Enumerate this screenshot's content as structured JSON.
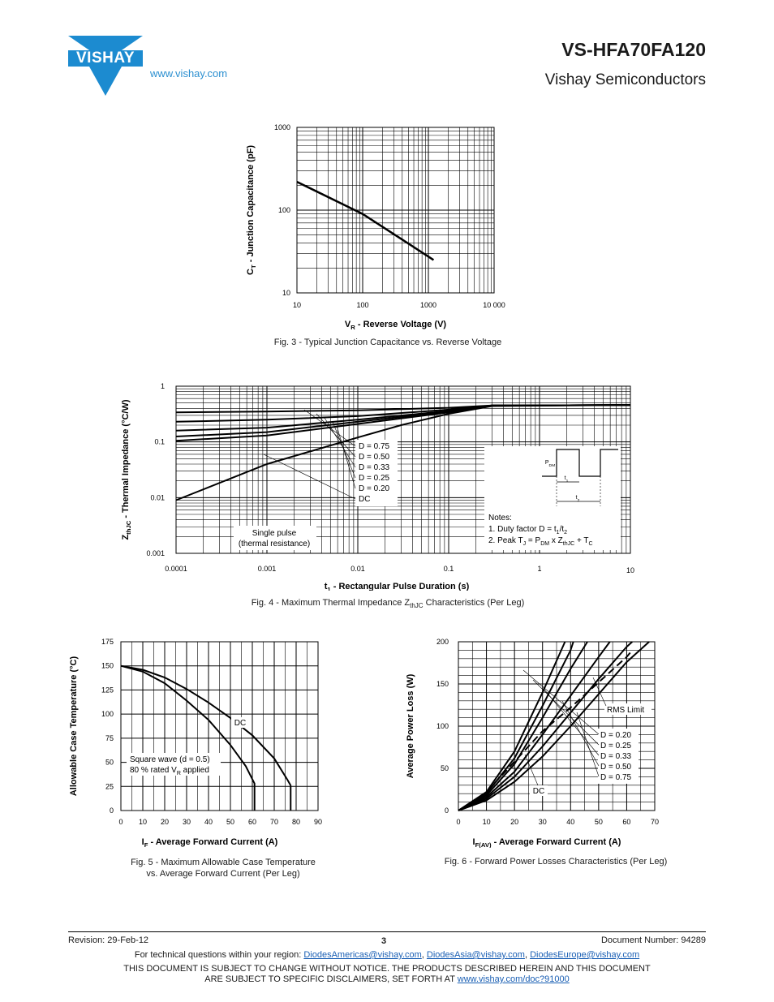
{
  "header": {
    "logo_text": "VISHAY",
    "url": "www.vishay.com",
    "part_number": "VS-HFA70FA120",
    "brand": "Vishay Semiconductors"
  },
  "fig3": {
    "caption": "Fig. 3 - Typical Junction Capacitance vs. Reverse Voltage",
    "ylabel_main": "C",
    "ylabel_sub": "T",
    "ylabel_rest": " - Junction Capacitance (pF)",
    "xlabel_main": "V",
    "xlabel_sub": "R",
    "xlabel_rest": " - Reverse Voltage (V)",
    "xticks": [
      "10",
      "100",
      "1000",
      "10 000"
    ],
    "yticks": [
      "10",
      "100",
      "1000"
    ]
  },
  "fig4": {
    "caption_pre": "Fig. 4 - Maximum Thermal Impedance Z",
    "caption_sub": "thJC",
    "caption_post": " Characteristics (Per Leg)",
    "ylabel_main": "Z",
    "ylabel_sub": "thJC",
    "ylabel_rest": " - Thermal Impedance (°C/W)",
    "xlabel_main": "t",
    "xlabel_sub": "1",
    "xlabel_rest": " - Rectangular Pulse Duration (s)",
    "xticks": [
      "0.0001",
      "0.001",
      "0.01",
      "0.1",
      "1",
      "10"
    ],
    "yticks": [
      "0.001",
      "0.01",
      "0.1",
      "1"
    ],
    "legend": [
      "D = 0.75",
      "D = 0.50",
      "D = 0.33",
      "D = 0.25",
      "D = 0.20",
      "DC"
    ],
    "single_pulse_1": "Single pulse",
    "single_pulse_2": "(thermal resistance)",
    "notes_title": "Notes:",
    "note1_pre": "1. Duty factor D = t",
    "note1_s1": "1",
    "note1_mid": "/t",
    "note1_s2": "2",
    "note2_a": "2. Peak T",
    "note2_as": "J",
    "note2_b": " = P",
    "note2_bs": "DM",
    "note2_c": " x Z",
    "note2_cs": "thJC",
    "note2_d": " + T",
    "note2_ds": "C",
    "inset_pdm": "P",
    "inset_pdm_sub": "DM",
    "inset_t1": "t",
    "inset_t1_sub": "1",
    "inset_t2": "t",
    "inset_t2_sub": "2"
  },
  "fig5": {
    "caption_line1": "Fig. 5 - Maximum Allowable Case Temperature",
    "caption_line2": "vs. Average Forward Current (Per Leg)",
    "ylabel": "Allowable Case Temperature (°C)",
    "xlabel_main": "I",
    "xlabel_sub": "F",
    "xlabel_rest": " - Average Forward Current (A)",
    "xticks": [
      "0",
      "10",
      "20",
      "30",
      "40",
      "50",
      "60",
      "70",
      "80",
      "90"
    ],
    "yticks": [
      "0",
      "25",
      "50",
      "75",
      "100",
      "125",
      "150",
      "175"
    ],
    "dc_label": "DC",
    "square_label_1": "Square wave (d = 0.5)",
    "square_label_2a": "80 % rated V",
    "square_label_2s": "R",
    "square_label_2b": " applied"
  },
  "fig6": {
    "caption": "Fig. 6 - Forward Power Losses Characteristics (Per Leg)",
    "ylabel": "Average Power Loss (W)",
    "xlabel_main": "I",
    "xlabel_sub": "F(AV)",
    "xlabel_rest": " - Average Forward Current (A)",
    "xticks": [
      "0",
      "10",
      "20",
      "30",
      "40",
      "50",
      "60",
      "70"
    ],
    "yticks": [
      "0",
      "50",
      "100",
      "150",
      "200"
    ],
    "rms_label": "RMS Limit",
    "legend": [
      "D = 0.20",
      "D = 0.25",
      "D = 0.33",
      "D = 0.50",
      "D = 0.75"
    ],
    "dc_label": "DC"
  },
  "chart_data": [
    {
      "type": "line",
      "title": "Fig. 3 - Typical Junction Capacitance vs. Reverse Voltage",
      "xlabel": "VR - Reverse Voltage (V)",
      "ylabel": "CT - Junction Capacitance (pF)",
      "xscale": "log",
      "yscale": "log",
      "xlim": [
        10,
        10000
      ],
      "ylim": [
        10,
        1000
      ],
      "grid": true,
      "series": [
        {
          "x": [
            10,
            100,
            1200
          ],
          "y": [
            220,
            90,
            25
          ]
        }
      ]
    },
    {
      "type": "line",
      "title": "Fig. 4 - Maximum Thermal Impedance ZthJC Characteristics (Per Leg)",
      "xlabel": "t1 - Rectangular Pulse Duration (s)",
      "ylabel": "ZthJC - Thermal Impedance (°C/W)",
      "xscale": "log",
      "yscale": "log",
      "xlim": [
        0.0001,
        10
      ],
      "ylim": [
        0.001,
        1
      ],
      "grid": true,
      "series": [
        {
          "name": "D = 0.75",
          "x": [
            0.0001,
            0.001,
            0.01,
            0.1,
            0.3,
            10
          ],
          "y": [
            0.34,
            0.35,
            0.37,
            0.41,
            0.45,
            0.46
          ]
        },
        {
          "name": "D = 0.50",
          "x": [
            0.0001,
            0.001,
            0.01,
            0.1,
            0.3,
            10
          ],
          "y": [
            0.23,
            0.25,
            0.29,
            0.38,
            0.45,
            0.46
          ]
        },
        {
          "name": "D = 0.33",
          "x": [
            0.0001,
            0.001,
            0.01,
            0.1,
            0.3,
            10
          ],
          "y": [
            0.16,
            0.18,
            0.25,
            0.36,
            0.45,
            0.46
          ]
        },
        {
          "name": "D = 0.25",
          "x": [
            0.0001,
            0.001,
            0.01,
            0.1,
            0.3,
            10
          ],
          "y": [
            0.125,
            0.15,
            0.23,
            0.35,
            0.45,
            0.46
          ]
        },
        {
          "name": "D = 0.20",
          "x": [
            0.0001,
            0.001,
            0.01,
            0.1,
            0.3,
            10
          ],
          "y": [
            0.105,
            0.13,
            0.21,
            0.34,
            0.45,
            0.46
          ]
        },
        {
          "name": "DC",
          "x": [
            0.0001,
            0.001,
            0.01,
            0.03,
            0.1,
            0.3,
            10
          ],
          "y": [
            0.009,
            0.04,
            0.12,
            0.2,
            0.32,
            0.44,
            0.46
          ]
        }
      ]
    },
    {
      "type": "line",
      "title": "Fig. 5 - Maximum Allowable Case Temperature vs. Average Forward Current (Per Leg)",
      "xlabel": "IF - Average Forward Current (A)",
      "ylabel": "Allowable Case Temperature (°C)",
      "xlim": [
        0,
        90
      ],
      "ylim": [
        0,
        175
      ],
      "grid": true,
      "series": [
        {
          "name": "DC",
          "x": [
            0,
            10,
            20,
            30,
            40,
            50,
            60,
            70,
            76,
            77.5
          ],
          "y": [
            150,
            146,
            138,
            126,
            112,
            96,
            78,
            54,
            32,
            26
          ]
        },
        {
          "name": "Square wave (d = 0.5)",
          "x": [
            0,
            10,
            20,
            30,
            40,
            50,
            57,
            61,
            61
          ],
          "y": [
            150,
            144,
            132,
            114,
            94,
            68,
            46,
            28,
            0
          ]
        }
      ]
    },
    {
      "type": "line",
      "title": "Fig. 6 - Forward Power Losses Characteristics (Per Leg)",
      "xlabel": "IF(AV) - Average Forward Current (A)",
      "ylabel": "Average Power Loss (W)",
      "xlim": [
        0,
        70
      ],
      "ylim": [
        0,
        200
      ],
      "grid": true,
      "series": [
        {
          "name": "D = 0.20",
          "x": [
            0,
            10,
            20,
            30,
            38
          ],
          "y": [
            0,
            22,
            70,
            140,
            200
          ]
        },
        {
          "name": "D = 0.25",
          "x": [
            0,
            10,
            20,
            30,
            40,
            41
          ],
          "y": [
            0,
            20,
            62,
            124,
            190,
            200
          ]
        },
        {
          "name": "D = 0.33",
          "x": [
            0,
            10,
            20,
            30,
            40,
            46
          ],
          "y": [
            0,
            18,
            55,
            110,
            168,
            200
          ]
        },
        {
          "name": "D = 0.50",
          "x": [
            0,
            10,
            20,
            30,
            40,
            50,
            54
          ],
          "y": [
            0,
            16,
            46,
            90,
            136,
            182,
            200
          ]
        },
        {
          "name": "D = 0.75",
          "x": [
            0,
            10,
            20,
            30,
            40,
            50,
            60,
            62
          ],
          "y": [
            0,
            14,
            40,
            76,
            116,
            156,
            194,
            200
          ]
        },
        {
          "name": "DC",
          "x": [
            0,
            10,
            20,
            30,
            40,
            50,
            60,
            68
          ],
          "y": [
            0,
            12,
            34,
            64,
            100,
            138,
            176,
            200
          ]
        },
        {
          "name": "RMS Limit",
          "x": [
            10,
            20,
            30,
            40,
            50,
            60,
            62
          ],
          "y": [
            22,
            58,
            94,
            122,
            152,
            182,
            190
          ]
        }
      ]
    }
  ],
  "footer": {
    "revision": "Revision: 29-Feb-12",
    "page": "3",
    "docnum": "Document Number: 94289",
    "contact_pre": "For technical questions within your region: ",
    "email1": "DiodesAmericas@vishay.com",
    "sep1": ", ",
    "email2": "DiodesAsia@vishay.com",
    "sep2": ", ",
    "email3": "DiodesEurope@vishay.com",
    "notice1": "THIS DOCUMENT IS SUBJECT TO CHANGE WITHOUT NOTICE. THE PRODUCTS DESCRIBED HEREIN AND THIS DOCUMENT",
    "notice2_pre": "ARE SUBJECT TO SPECIFIC DISCLAIMERS, SET FORTH AT ",
    "notice2_link": "www.vishay.com/doc?91000"
  },
  "colors": {
    "logo_blue": "#1c8bd0",
    "link_blue": "#2b8fd0",
    "ink": "#000000"
  }
}
